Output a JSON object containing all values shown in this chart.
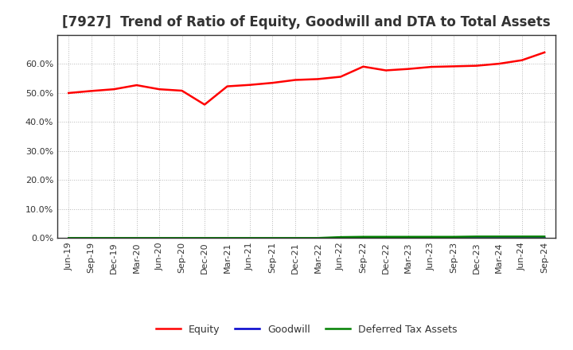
{
  "title": "[7927]  Trend of Ratio of Equity, Goodwill and DTA to Total Assets",
  "x_labels": [
    "Jun-19",
    "Sep-19",
    "Dec-19",
    "Mar-20",
    "Jun-20",
    "Sep-20",
    "Dec-20",
    "Mar-21",
    "Jun-21",
    "Sep-21",
    "Dec-21",
    "Mar-22",
    "Jun-22",
    "Sep-22",
    "Dec-22",
    "Mar-23",
    "Jun-23",
    "Sep-23",
    "Dec-23",
    "Mar-24",
    "Jun-24",
    "Sep-24"
  ],
  "equity": [
    0.5,
    0.507,
    0.513,
    0.527,
    0.513,
    0.508,
    0.46,
    0.523,
    0.528,
    0.535,
    0.545,
    0.548,
    0.556,
    0.591,
    0.578,
    0.583,
    0.59,
    0.592,
    0.594,
    0.601,
    0.613,
    0.64
  ],
  "goodwill": [
    0.0,
    0.0,
    0.0,
    0.0,
    0.0,
    0.0,
    0.0,
    0.0,
    0.0,
    0.0,
    0.0,
    0.0,
    0.0,
    0.0,
    0.0,
    0.0,
    0.0,
    0.0,
    0.0,
    0.0,
    0.0,
    0.0
  ],
  "dta": [
    0.0,
    0.0,
    0.0,
    0.0,
    0.0,
    0.0,
    0.0,
    0.0,
    0.0,
    0.0,
    0.0,
    0.0,
    0.003,
    0.004,
    0.004,
    0.004,
    0.004,
    0.004,
    0.005,
    0.005,
    0.005,
    0.005
  ],
  "equity_color": "#ff0000",
  "goodwill_color": "#0000cc",
  "dta_color": "#008000",
  "bg_color": "#ffffff",
  "plot_bg_color": "#ffffff",
  "grid_color": "#888888",
  "spine_color": "#333333",
  "ylim": [
    0.0,
    0.7
  ],
  "yticks": [
    0.0,
    0.1,
    0.2,
    0.3,
    0.4,
    0.5,
    0.6
  ],
  "title_fontsize": 12,
  "tick_fontsize": 8,
  "legend_labels": [
    "Equity",
    "Goodwill",
    "Deferred Tax Assets"
  ]
}
